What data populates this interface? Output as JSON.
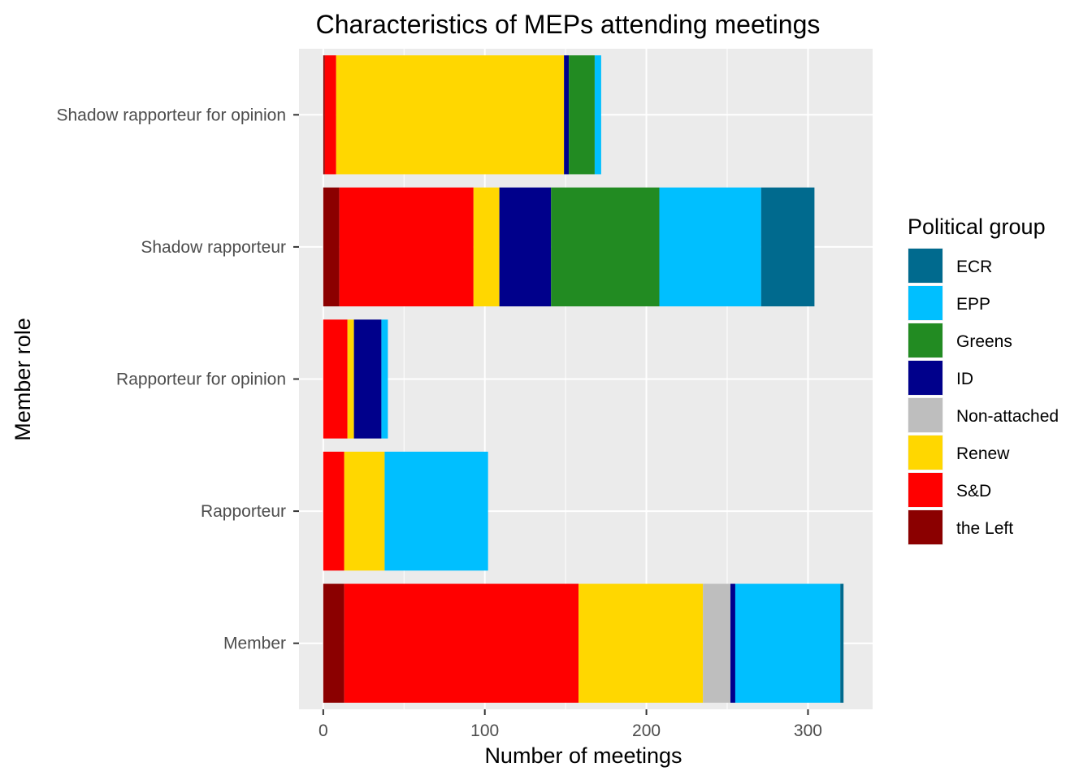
{
  "chart_data": {
    "type": "bar",
    "orientation": "horizontal",
    "stacked": true,
    "title": "Characteristics of MEPs attending meetings",
    "xlabel": "Number of meetings",
    "ylabel": "Member role",
    "xlim": [
      -15,
      340
    ],
    "xticks": [
      0,
      100,
      200,
      300
    ],
    "grid": true,
    "legend_title": "Political group",
    "legend_position": "right",
    "categories": [
      "Shadow rapporteur for opinion",
      "Shadow rapporteur",
      "Rapporteur for opinion",
      "Rapporteur",
      "Member"
    ],
    "stack_order": [
      "the Left",
      "S&D",
      "Renew",
      "Non-attached",
      "ID",
      "Greens",
      "EPP",
      "ECR"
    ],
    "legend_order": [
      "ECR",
      "EPP",
      "Greens",
      "ID",
      "Non-attached",
      "Renew",
      "S&D",
      "the Left"
    ],
    "colors": {
      "ECR": "#006a8e",
      "EPP": "#00bfff",
      "Greens": "#228b22",
      "ID": "#00008b",
      "Non-attached": "#bebebe",
      "Renew": "#ffd700",
      "S&D": "#ff0000",
      "the Left": "#8b0000"
    },
    "series": [
      {
        "name": "the Left",
        "values": [
          1,
          10,
          0,
          0,
          13
        ]
      },
      {
        "name": "S&D",
        "values": [
          7,
          83,
          15,
          13,
          145
        ]
      },
      {
        "name": "Renew",
        "values": [
          141,
          16,
          4,
          25,
          77
        ]
      },
      {
        "name": "Non-attached",
        "values": [
          0,
          0,
          0,
          0,
          17
        ]
      },
      {
        "name": "ID",
        "values": [
          3,
          32,
          17,
          0,
          3
        ]
      },
      {
        "name": "Greens",
        "values": [
          16,
          67,
          0,
          0,
          0
        ]
      },
      {
        "name": "EPP",
        "values": [
          4,
          63,
          4,
          64,
          65
        ]
      },
      {
        "name": "ECR",
        "values": [
          0,
          33,
          0,
          0,
          2
        ]
      }
    ]
  }
}
